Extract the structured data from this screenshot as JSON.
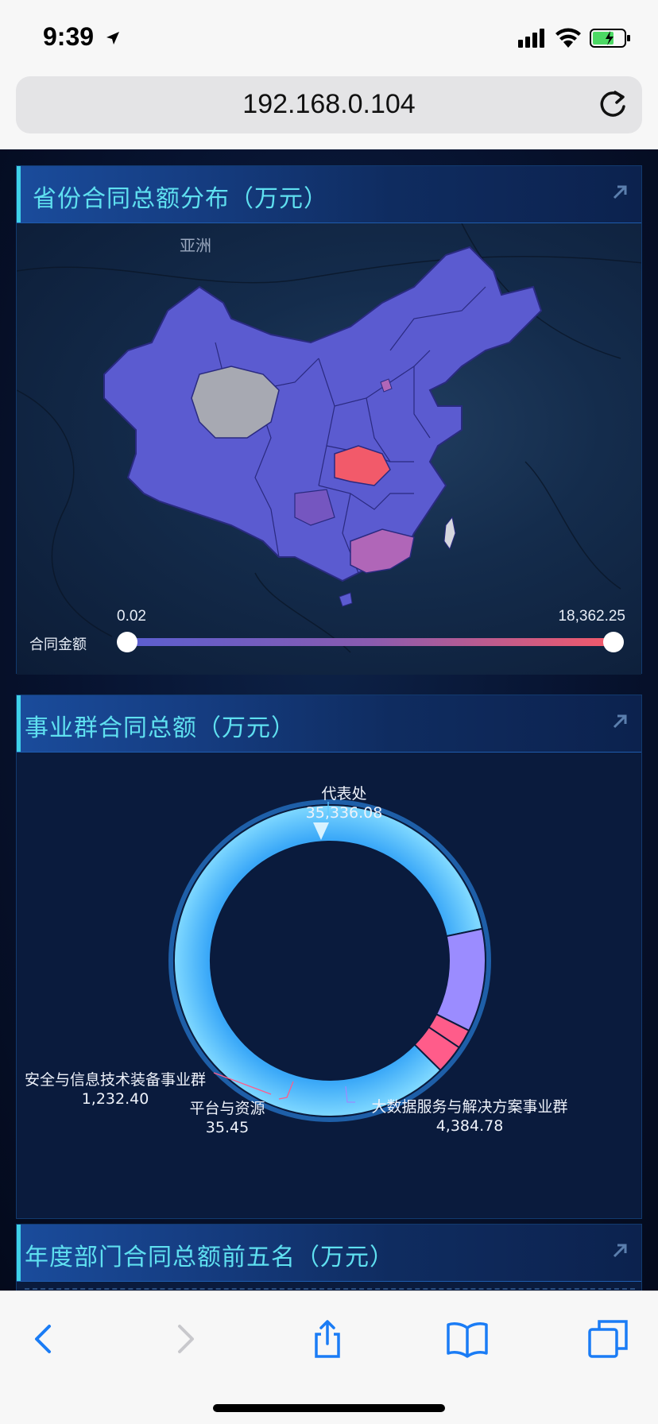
{
  "status_bar": {
    "time": "9:39"
  },
  "browser": {
    "url": "192.168.0.104"
  },
  "map_panel": {
    "title": "省份合同总额分布（万元）",
    "region_label": "亚洲",
    "legend": {
      "label": "合同金额",
      "min": "0.02",
      "max": "18,362.25"
    }
  },
  "donut_panel": {
    "title": "事业群合同总额（万元）",
    "labels": {
      "daibiaochu_name": "代表处",
      "daibiaochu_value": "35,336.08",
      "anquan_name": "安全与信息技术装备事业群",
      "anquan_value": "1,232.40",
      "pingtai_name": "平台与资源",
      "pingtai_value": "35.45",
      "dashuju_name": "大数据服务与解决方案事业群",
      "dashuju_value": "4,384.78"
    }
  },
  "chart_data": {
    "type": "pie",
    "title": "事业群合同总额（万元）",
    "categories": [
      "代表处",
      "大数据服务与解决方案事业群",
      "安全与信息技术装备事业群",
      "平台与资源"
    ],
    "values": [
      35336.08,
      4384.78,
      1232.4,
      35.45
    ],
    "colors": [
      "#5cc8ff",
      "#9b8cff",
      "#ff5c8a",
      "#ff5c8a"
    ]
  },
  "top5_panel": {
    "title": "年度部门合同总额前五名（万元）"
  },
  "colors": {
    "accent": "#5fe0f0",
    "map_fill": "#5a5ed0",
    "highlight": "#f25a6a"
  }
}
